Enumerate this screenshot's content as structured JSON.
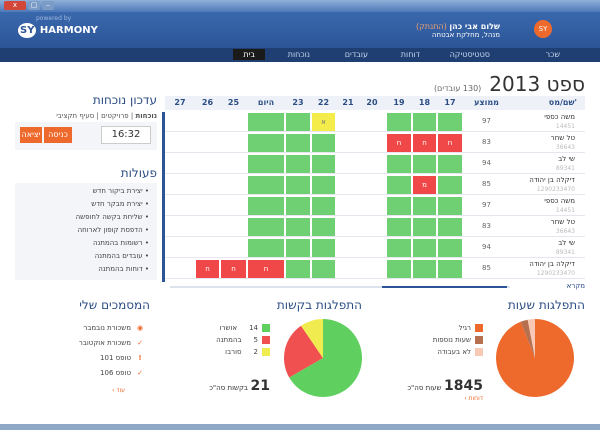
{
  "window": {
    "close": "x",
    "restore": "▢",
    "minimize": "–"
  },
  "brand": {
    "powered_by": "powered by",
    "logo": "SY HARMONY",
    "client_logo": "SY NET"
  },
  "user": {
    "name": "שלום אבי כהן",
    "logout": "(התנתק)",
    "role": "מנהל, מחלקת אבטחה"
  },
  "nav": [
    {
      "label": "בית",
      "active": true
    },
    {
      "label": "נוכחות"
    },
    {
      "label": "עובדים"
    },
    {
      "label": "דוחות"
    },
    {
      "label": "סטטיסטיקה"
    },
    {
      "label": "שכר"
    }
  ],
  "calendar": {
    "title": "ספט 2013",
    "subtitle": "(130 עובדים)",
    "col_name": "שם/מס'",
    "col_avg": "ממוצע",
    "days": [
      "17",
      "18",
      "19",
      "20",
      "21",
      "22",
      "23",
      "היום",
      "25",
      "26",
      "27"
    ],
    "rows": [
      {
        "name": "משה כספי",
        "id": "14451",
        "avg": "97",
        "cells": [
          [
            "g",
            ""
          ],
          [
            "g",
            ""
          ],
          [
            "g",
            ""
          ],
          [
            "",
            ""
          ],
          [
            "",
            ""
          ],
          [
            "y",
            "א"
          ],
          [
            "g",
            ""
          ],
          [
            "g",
            ""
          ],
          [
            "",
            ""
          ],
          [
            "",
            ""
          ],
          [
            "",
            ""
          ]
        ]
      },
      {
        "name": "טל שחר",
        "id": "36643",
        "avg": "83",
        "cells": [
          [
            "r",
            "ח"
          ],
          [
            "r",
            "ח"
          ],
          [
            "r",
            "ח"
          ],
          [
            "",
            ""
          ],
          [
            "",
            ""
          ],
          [
            "g",
            ""
          ],
          [
            "g",
            ""
          ],
          [
            "g",
            ""
          ],
          [
            "",
            ""
          ],
          [
            "",
            ""
          ],
          [
            "",
            ""
          ]
        ]
      },
      {
        "name": "שי לב",
        "id": "89341",
        "avg": "94",
        "cells": [
          [
            "g",
            ""
          ],
          [
            "g",
            ""
          ],
          [
            "g",
            ""
          ],
          [
            "",
            ""
          ],
          [
            "",
            ""
          ],
          [
            "g",
            ""
          ],
          [
            "g",
            ""
          ],
          [
            "g",
            ""
          ],
          [
            "",
            ""
          ],
          [
            "",
            ""
          ],
          [
            "",
            ""
          ]
        ]
      },
      {
        "name": "דיקלה בן יהודה",
        "id": "1290233470",
        "avg": "85",
        "cells": [
          [
            "g",
            ""
          ],
          [
            "r",
            "מ"
          ],
          [
            "g",
            ""
          ],
          [
            "",
            ""
          ],
          [
            "",
            ""
          ],
          [
            "g",
            ""
          ],
          [
            "g",
            ""
          ],
          [
            "g",
            ""
          ],
          [
            "",
            ""
          ],
          [
            "",
            ""
          ],
          [
            "",
            ""
          ]
        ]
      },
      {
        "name": "משה כספי",
        "id": "14451",
        "avg": "97",
        "cells": [
          [
            "g",
            ""
          ],
          [
            "g",
            ""
          ],
          [
            "g",
            ""
          ],
          [
            "",
            ""
          ],
          [
            "",
            ""
          ],
          [
            "g",
            ""
          ],
          [
            "g",
            ""
          ],
          [
            "g",
            ""
          ],
          [
            "",
            ""
          ],
          [
            "",
            ""
          ],
          [
            "",
            ""
          ]
        ]
      },
      {
        "name": "טל שחר",
        "id": "36643",
        "avg": "83",
        "cells": [
          [
            "g",
            ""
          ],
          [
            "g",
            ""
          ],
          [
            "g",
            ""
          ],
          [
            "",
            ""
          ],
          [
            "",
            ""
          ],
          [
            "g",
            ""
          ],
          [
            "g",
            ""
          ],
          [
            "g",
            ""
          ],
          [
            "",
            ""
          ],
          [
            "",
            ""
          ],
          [
            "",
            ""
          ]
        ]
      },
      {
        "name": "שי לב",
        "id": "89341",
        "avg": "94",
        "cells": [
          [
            "g",
            ""
          ],
          [
            "g",
            ""
          ],
          [
            "g",
            ""
          ],
          [
            "",
            ""
          ],
          [
            "",
            ""
          ],
          [
            "g",
            ""
          ],
          [
            "g",
            ""
          ],
          [
            "g",
            ""
          ],
          [
            "",
            ""
          ],
          [
            "",
            ""
          ],
          [
            "",
            ""
          ]
        ]
      },
      {
        "name": "דיקלה בן יהודה",
        "id": "1290233470",
        "avg": "85",
        "cells": [
          [
            "g",
            ""
          ],
          [
            "g",
            ""
          ],
          [
            "g",
            ""
          ],
          [
            "",
            ""
          ],
          [
            "",
            ""
          ],
          [
            "g",
            ""
          ],
          [
            "g",
            ""
          ],
          [
            "r",
            "ח"
          ],
          [
            "r",
            "ח"
          ],
          [
            "r",
            "ח"
          ],
          [
            "",
            ""
          ]
        ]
      }
    ],
    "legend_link": "מקרא"
  },
  "attendance": {
    "title": "עדכון נוכחות",
    "tabs": [
      "נוכחות",
      "פרויקטים",
      "סעיף תקציבי"
    ],
    "time": "16:32",
    "enter": "כניסה",
    "exit": "יציאה"
  },
  "actions": {
    "title": "פעולות",
    "items": [
      "יצירת ביקור חדש",
      "יצירת מבקר חדש",
      "שליחת בקשה לחופשה",
      "הדפסת קופון לארוחה",
      "רשומות בהמתנה",
      "עובדים בהמתנה",
      "דוחות בהמתנה"
    ]
  },
  "hours": {
    "title": "התפלגות שעות",
    "legend": [
      {
        "label": "רגיל",
        "color": "#ee6a2c",
        "value": 94
      },
      {
        "label": "שעות נוספות",
        "color": "#b7704f",
        "value": 3
      },
      {
        "label": "לא בעבודה",
        "color": "#f8c8b4",
        "value": 3
      }
    ],
    "total": "1845",
    "total_label": "שעות סה\"כ",
    "link": "דוחות ›"
  },
  "requests": {
    "title": "התפלגות בקשות",
    "legend": [
      {
        "label": "אושרו",
        "count": "14",
        "color": "#5fd05f"
      },
      {
        "label": "בהמתנה",
        "count": "5",
        "color": "#f05050"
      },
      {
        "label": "סורבו",
        "count": "2",
        "color": "#f0ec50"
      }
    ],
    "total": "21",
    "total_label": "בקשות סה\"כ"
  },
  "docs": {
    "title": "המסמכים שלי",
    "items": [
      {
        "label": "משכורת נובמבר",
        "icon": "eye-icon"
      },
      {
        "label": "משכורת אוקטובר",
        "icon": "check-icon"
      },
      {
        "label": "טופס 101",
        "icon": "exclamation-icon"
      },
      {
        "label": "טופס 106",
        "icon": "check-icon"
      }
    ],
    "more": "עוד ›"
  },
  "colors": {
    "header": "#2c5598",
    "accent": "#ee6a2c",
    "green": "#6fcf73",
    "red": "#f04848",
    "yellow": "#f3ec4a"
  }
}
